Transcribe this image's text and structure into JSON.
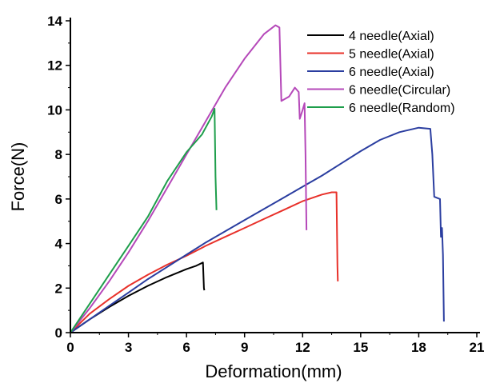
{
  "chart_data": {
    "type": "line",
    "xlabel": "Deformation(mm)",
    "ylabel": "Force(N)",
    "xlim": [
      0,
      21
    ],
    "ylim": [
      0,
      14
    ],
    "xticks": [
      0,
      3,
      6,
      9,
      12,
      15,
      18,
      21
    ],
    "yticks": [
      0,
      2,
      4,
      6,
      8,
      10,
      12,
      14
    ],
    "legend_position": "top-right",
    "grid": false,
    "series": [
      {
        "name": "4 needle(Axial)",
        "color": "#000000",
        "points": [
          [
            0,
            0
          ],
          [
            1,
            0.6
          ],
          [
            2,
            1.15
          ],
          [
            3,
            1.65
          ],
          [
            4,
            2.1
          ],
          [
            5,
            2.5
          ],
          [
            6,
            2.85
          ],
          [
            6.5,
            3.0
          ],
          [
            6.85,
            3.15
          ],
          [
            6.9,
            2.0
          ],
          [
            6.92,
            1.9
          ]
        ]
      },
      {
        "name": "5 needle(Axial)",
        "color": "#e8312a",
        "points": [
          [
            0,
            0
          ],
          [
            1,
            0.85
          ],
          [
            2,
            1.5
          ],
          [
            3,
            2.1
          ],
          [
            4,
            2.6
          ],
          [
            5,
            3.05
          ],
          [
            6,
            3.45
          ],
          [
            7,
            3.9
          ],
          [
            8,
            4.3
          ],
          [
            9,
            4.7
          ],
          [
            10,
            5.1
          ],
          [
            11,
            5.5
          ],
          [
            12,
            5.9
          ],
          [
            13,
            6.2
          ],
          [
            13.5,
            6.3
          ],
          [
            13.75,
            6.3
          ],
          [
            13.8,
            3.0
          ],
          [
            13.82,
            2.3
          ]
        ]
      },
      {
        "name": "6 needle(Axial)",
        "color": "#2b3ea0",
        "points": [
          [
            0,
            0
          ],
          [
            1,
            0.6
          ],
          [
            2,
            1.2
          ],
          [
            3,
            1.8
          ],
          [
            4,
            2.4
          ],
          [
            5,
            2.95
          ],
          [
            6,
            3.5
          ],
          [
            7,
            4.05
          ],
          [
            8,
            4.55
          ],
          [
            9,
            5.05
          ],
          [
            10,
            5.55
          ],
          [
            11,
            6.05
          ],
          [
            12,
            6.55
          ],
          [
            13,
            7.05
          ],
          [
            14,
            7.6
          ],
          [
            15,
            8.15
          ],
          [
            16,
            8.65
          ],
          [
            17,
            9.0
          ],
          [
            18,
            9.2
          ],
          [
            18.6,
            9.15
          ],
          [
            18.7,
            8.0
          ],
          [
            18.8,
            6.1
          ],
          [
            19.1,
            6.0
          ],
          [
            19.15,
            4.3
          ],
          [
            19.2,
            4.7
          ],
          [
            19.25,
            3.5
          ],
          [
            19.3,
            0.5
          ]
        ]
      },
      {
        "name": "6 needle(Circular)",
        "color": "#b548b9",
        "points": [
          [
            0,
            0
          ],
          [
            1,
            1.1
          ],
          [
            2,
            2.3
          ],
          [
            3,
            3.6
          ],
          [
            4,
            5.0
          ],
          [
            5,
            6.5
          ],
          [
            6,
            8.0
          ],
          [
            7,
            9.5
          ],
          [
            8,
            11.0
          ],
          [
            9,
            12.3
          ],
          [
            10,
            13.4
          ],
          [
            10.6,
            13.8
          ],
          [
            10.8,
            13.7
          ],
          [
            10.9,
            10.4
          ],
          [
            11.3,
            10.6
          ],
          [
            11.6,
            11.0
          ],
          [
            11.8,
            10.8
          ],
          [
            11.85,
            9.6
          ],
          [
            12.0,
            10.0
          ],
          [
            12.1,
            10.3
          ],
          [
            12.15,
            8.0
          ],
          [
            12.2,
            4.6
          ]
        ]
      },
      {
        "name": "6 needle(Random)",
        "color": "#1e9e4b",
        "points": [
          [
            0,
            0
          ],
          [
            1,
            1.3
          ],
          [
            2,
            2.6
          ],
          [
            3,
            3.9
          ],
          [
            4,
            5.2
          ],
          [
            5,
            6.8
          ],
          [
            6,
            8.1
          ],
          [
            6.8,
            8.9
          ],
          [
            7.3,
            9.7
          ],
          [
            7.45,
            10.05
          ],
          [
            7.5,
            7.0
          ],
          [
            7.55,
            5.5
          ]
        ]
      }
    ]
  }
}
